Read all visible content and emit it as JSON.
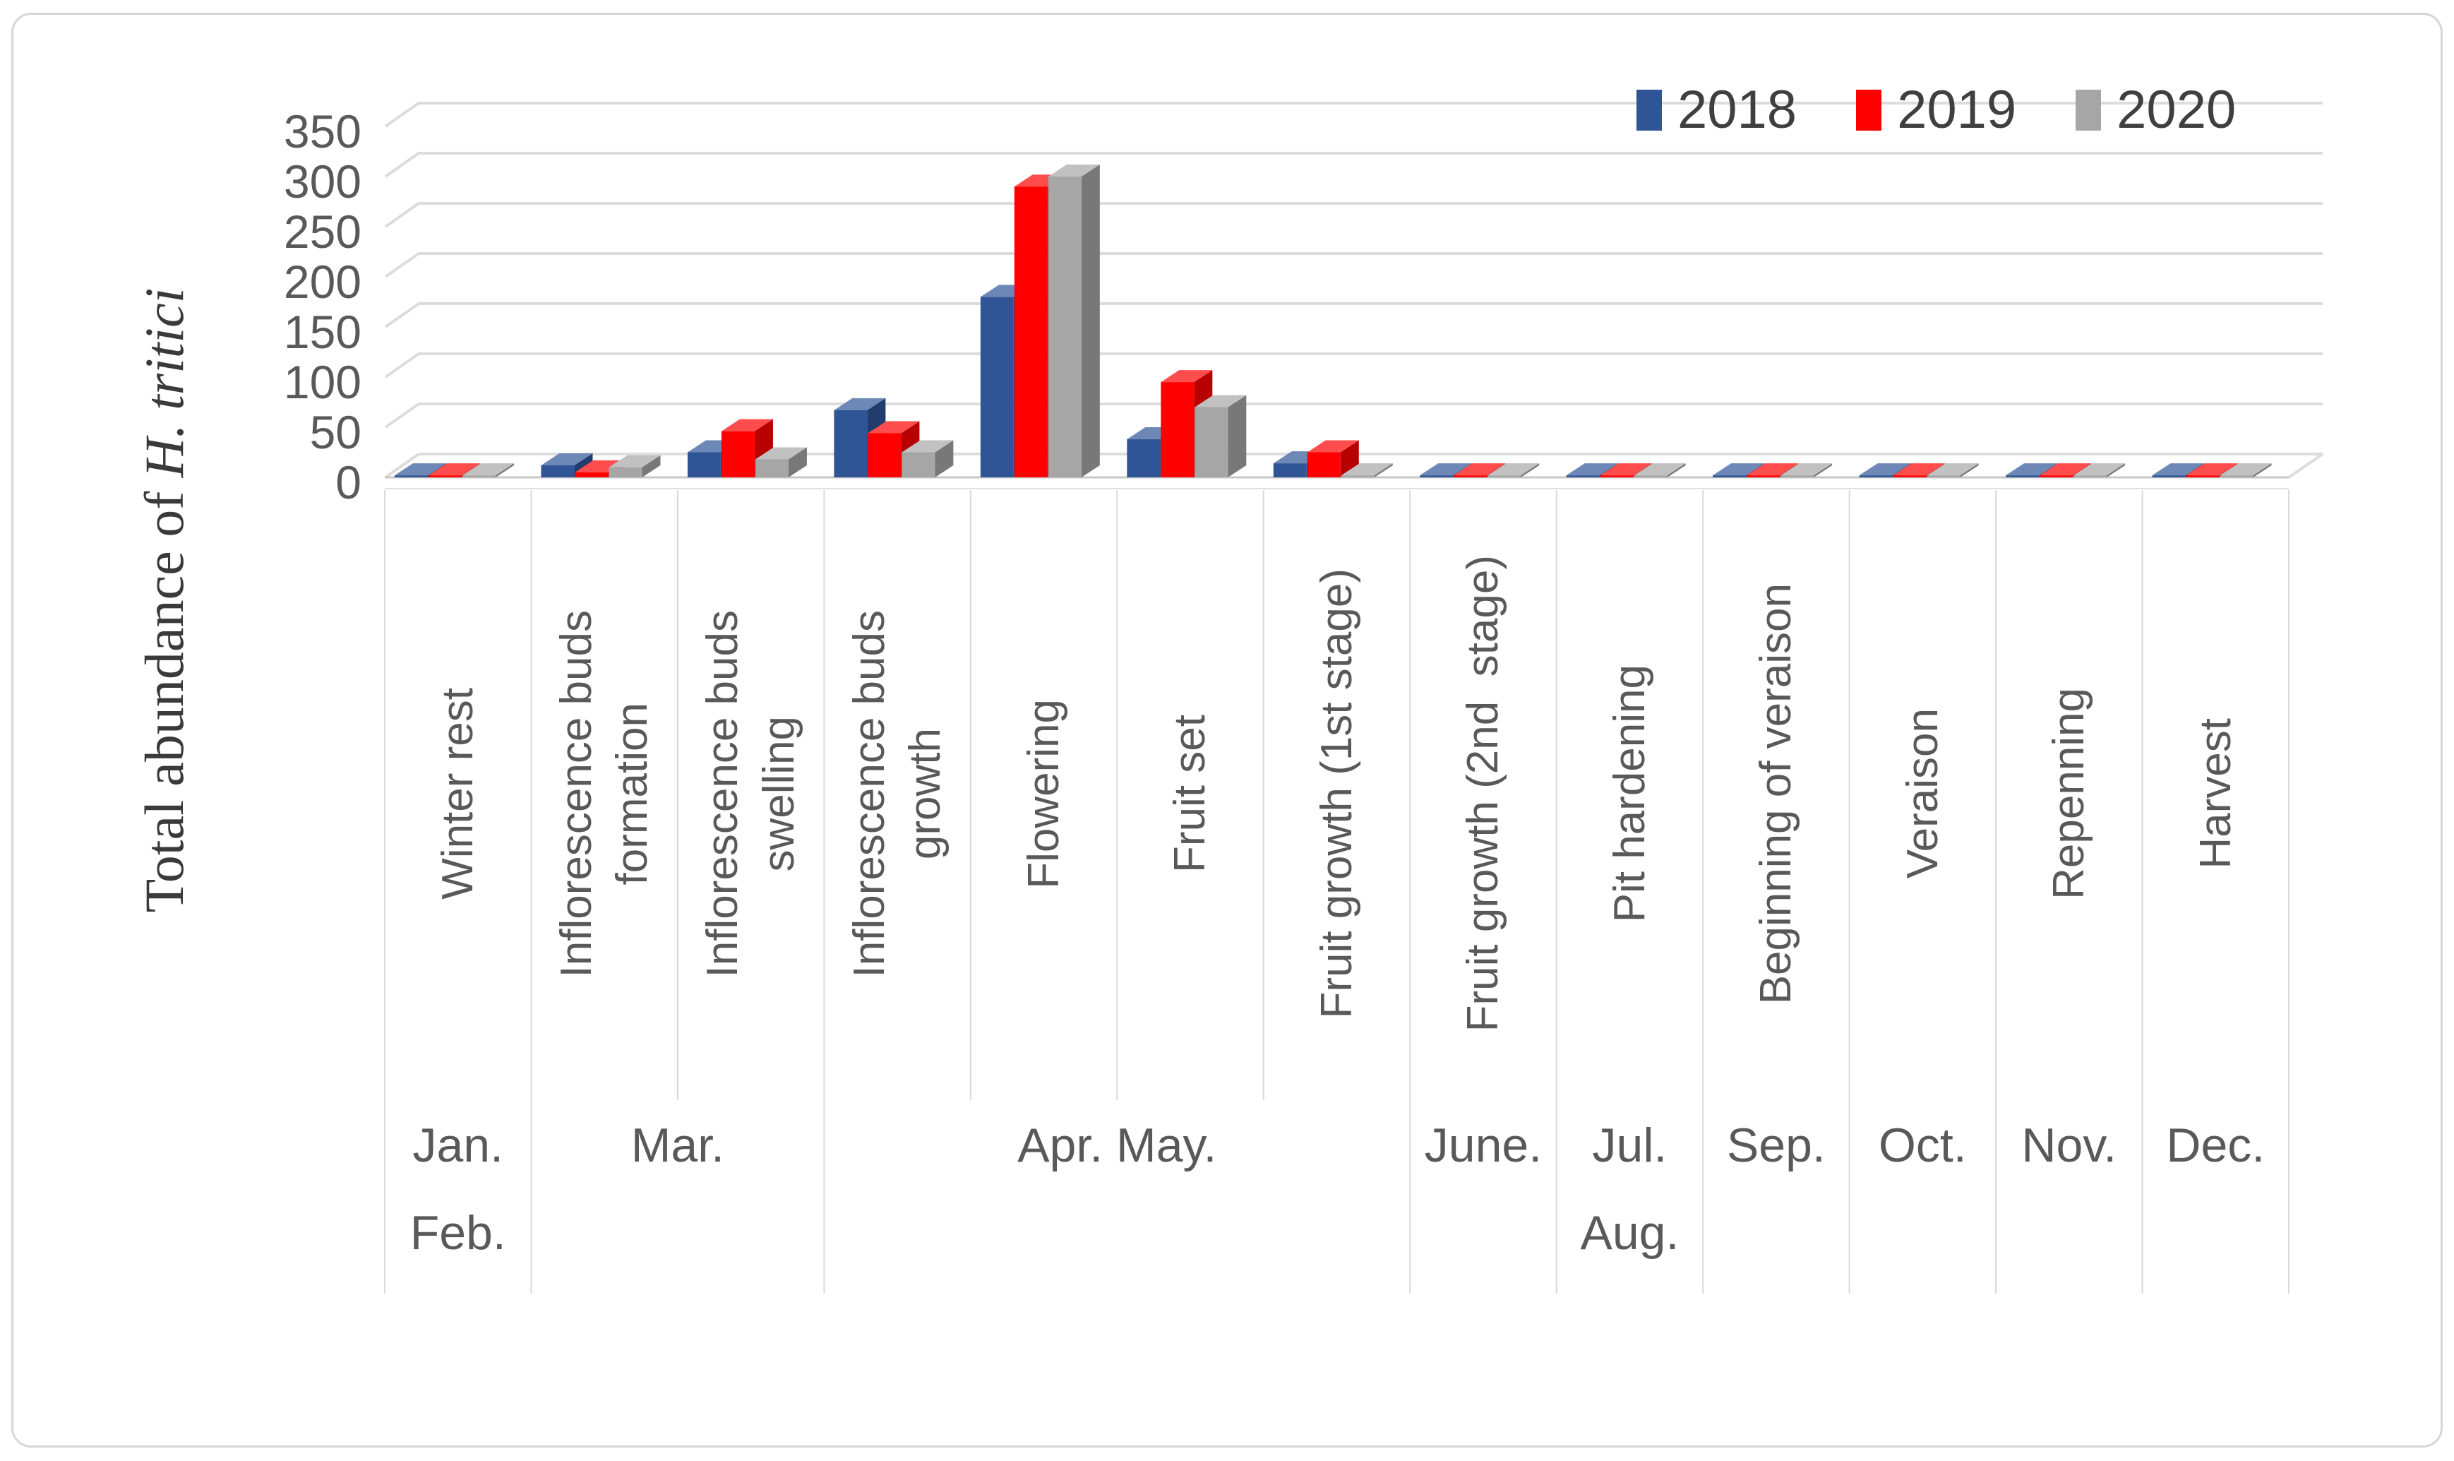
{
  "chart_data": {
    "type": "bar",
    "title": "",
    "ylabel": "Total abundance of H. tritici",
    "ylabel_prefix": "Total abundance of ",
    "ylabel_italic": "H. tritici",
    "ylim": [
      0,
      350
    ],
    "yticks": [
      0,
      50,
      100,
      150,
      200,
      250,
      300,
      350
    ],
    "grid": true,
    "legend_position": "top-right",
    "background": "#FFFFFF",
    "categories": [
      [
        "Winter rest"
      ],
      [
        "Inflorescence buds",
        "formation"
      ],
      [
        "Inflorescence buds",
        "swelling"
      ],
      [
        "Inflorescence buds",
        "growth"
      ],
      [
        "Flowering"
      ],
      [
        "Fruit set"
      ],
      [
        "Fruit growth (1st stage)"
      ],
      [
        "Fruit growth (2nd  stage)"
      ],
      [
        "Pit hardening"
      ],
      [
        "Beginning of veraison"
      ],
      [
        "Veraison"
      ],
      [
        "Repenning"
      ],
      [
        "Harvest"
      ]
    ],
    "series": [
      {
        "name": "2018",
        "color": "#2F5597",
        "values": [
          2,
          12,
          25,
          67,
          180,
          38,
          14,
          2,
          2,
          2,
          2,
          2,
          2
        ]
      },
      {
        "name": "2019",
        "color": "#FF0000",
        "values": [
          2,
          5,
          46,
          44,
          290,
          95,
          25,
          2,
          2,
          2,
          2,
          2,
          2
        ]
      },
      {
        "name": "2020",
        "color": "#A6A6A6",
        "values": [
          2,
          10,
          18,
          25,
          300,
          70,
          2,
          2,
          2,
          2,
          2,
          2,
          2
        ]
      }
    ],
    "month_axis": [
      {
        "line1": "Jan.",
        "line2": "Feb.",
        "span": 1
      },
      {
        "line1": "Mar.",
        "line2": "",
        "span": 2
      },
      {
        "line1": "Apr. May.",
        "line2": "",
        "span": 4
      },
      {
        "line1": "June.",
        "line2": "",
        "span": 1
      },
      {
        "line1": "Jul.",
        "line2": "Aug.",
        "span": 1
      },
      {
        "line1": "Sep.",
        "line2": "",
        "span": 1
      },
      {
        "line1": "Oct.",
        "line2": "",
        "span": 1
      },
      {
        "line1": "Nov.",
        "line2": "",
        "span": 1
      },
      {
        "line1": "Dec.",
        "line2": "",
        "span": 1
      }
    ],
    "text_colors": {
      "axis_labels": "#595959",
      "legend": "#3F3F3F",
      "axis_title": "#3A3A3A"
    }
  }
}
